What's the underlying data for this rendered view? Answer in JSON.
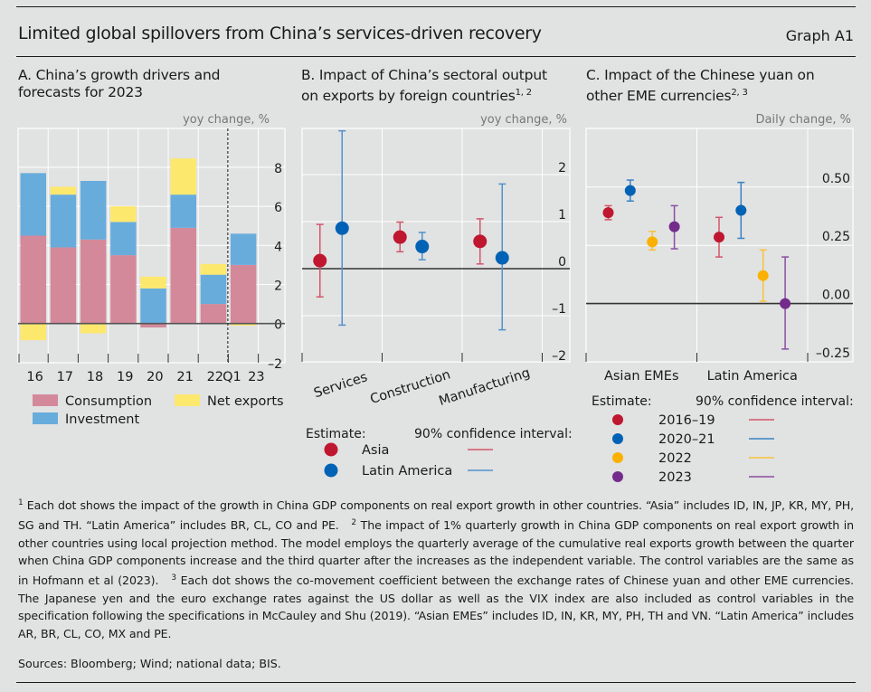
{
  "header": {
    "title": "Limited global spillovers from China’s services-driven recovery",
    "graph_number": "Graph A1"
  },
  "panels": {
    "a": {
      "title_line1": "A. China’s growth drivers and",
      "title_line2": "forecasts for 2023"
    },
    "b": {
      "title_line1": "B. Impact of China’s sectoral output",
      "title_line2": "on exports by foreign countries",
      "sup": "1, 2"
    },
    "c": {
      "title_line1": "C. Impact of the Chinese yuan on",
      "title_line2": "other EME currencies",
      "sup": "2, 3"
    }
  },
  "chart_data": [
    {
      "id": "panel-a",
      "type": "bar",
      "stacked": true,
      "title": "A. China’s growth drivers and forecasts for 2023",
      "ylabel": "yoy change, %",
      "ylim": [
        -2,
        9.5
      ],
      "yticks": [
        8,
        6,
        4,
        2,
        0,
        -2
      ],
      "ytick_labels": [
        "8",
        "6",
        "4",
        "2",
        "0",
        "–2"
      ],
      "categories": [
        "16",
        "17",
        "18",
        "19",
        "20",
        "21",
        "22",
        "Q1 23"
      ],
      "vertical_separator_after": "22",
      "series": [
        {
          "name": "Consumption",
          "color": "#d3899a",
          "values": [
            4.5,
            3.9,
            4.3,
            3.5,
            -0.2,
            4.9,
            1.0,
            3.0
          ]
        },
        {
          "name": "Investment",
          "color": "#68acdc",
          "values": [
            3.2,
            2.7,
            3.0,
            1.7,
            1.8,
            1.7,
            1.5,
            1.6
          ]
        },
        {
          "name": "Net exports",
          "color": "#fde86e",
          "values": [
            -0.85,
            0.4,
            -0.5,
            0.8,
            0.6,
            1.85,
            0.55,
            -0.1
          ]
        }
      ],
      "legend": [
        {
          "label": "Consumption",
          "color": "#d3899a"
        },
        {
          "label": "Net exports",
          "color": "#fde86e"
        },
        {
          "label": "Investment",
          "color": "#68acdc"
        }
      ],
      "legend_position": "bottom"
    },
    {
      "id": "panel-b",
      "type": "scatter",
      "title": "B. Impact of China’s sectoral output on exports by foreign countries",
      "ylabel": "yoy change, %",
      "ylim": [
        -2,
        3
      ],
      "yticks": [
        2,
        1,
        0,
        -1,
        -2
      ],
      "ytick_labels": [
        "2",
        "1",
        "0",
        "–1",
        "–2"
      ],
      "categories": [
        "Services",
        "Construction",
        "Manufacturing"
      ],
      "series": [
        {
          "name": "Asia",
          "color": "#bf1730",
          "ci_color": "#d2576b",
          "estimate": [
            0.17,
            0.67,
            0.58
          ],
          "ci_low": [
            -0.6,
            0.36,
            0.1
          ],
          "ci_high": [
            0.94,
            0.99,
            1.06
          ]
        },
        {
          "name": "Latin America",
          "color": "#0062b5",
          "ci_color": "#5192cc",
          "estimate": [
            0.86,
            0.47,
            0.23
          ],
          "ci_low": [
            -1.2,
            0.19,
            -1.3
          ],
          "ci_high": [
            2.93,
            0.77,
            1.8
          ]
        }
      ],
      "legend": {
        "estimate_label": "Estimate:",
        "ci_label": "90% confidence interval:",
        "items": [
          {
            "label": "Asia"
          },
          {
            "label": "Latin America"
          }
        ]
      },
      "legend_position": "bottom"
    },
    {
      "id": "panel-c",
      "type": "scatter",
      "title": "C. Impact of the Chinese yuan on other EME currencies",
      "ylabel": "Daily change, %",
      "ylim": [
        -0.25,
        0.75
      ],
      "yticks": [
        0.5,
        0.25,
        0.0,
        -0.25
      ],
      "ytick_labels": [
        "0.50",
        "0.25",
        "0.00",
        "–0.25"
      ],
      "categories": [
        "Asian EMEs",
        "Latin America"
      ],
      "series": [
        {
          "name": "2016–19",
          "color": "#bf1730",
          "ci_color": "#d2576b",
          "estimate": [
            0.39,
            0.285
          ],
          "ci_low": [
            0.36,
            0.2
          ],
          "ci_high": [
            0.42,
            0.37
          ]
        },
        {
          "name": "2020–21",
          "color": "#0062b5",
          "ci_color": "#3a82c4",
          "estimate": [
            0.485,
            0.4
          ],
          "ci_low": [
            0.44,
            0.28
          ],
          "ci_high": [
            0.53,
            0.52
          ]
        },
        {
          "name": "2022",
          "color": "#fbb100",
          "ci_color": "#f8c23c",
          "estimate": [
            0.265,
            0.12
          ],
          "ci_low": [
            0.23,
            0.01
          ],
          "ci_high": [
            0.31,
            0.23
          ]
        },
        {
          "name": "2023",
          "color": "#742c8c",
          "ci_color": "#8a4ea0",
          "estimate": [
            0.33,
            0.0
          ],
          "ci_low": [
            0.235,
            -0.195
          ],
          "ci_high": [
            0.42,
            0.2
          ]
        }
      ],
      "legend": {
        "estimate_label": "Estimate:",
        "ci_label": "90% confidence interval:",
        "items": [
          {
            "label": "2016–19"
          },
          {
            "label": "2020–21"
          },
          {
            "label": "2022"
          },
          {
            "label": "2023"
          }
        ]
      },
      "legend_position": "bottom"
    }
  ],
  "footnotes": {
    "n1_mark": "1",
    "n1": "Each dot shows the impact of the growth in China GDP components on real export growth in other countries. “Asia” includes ID, IN, JP, KR, MY, PH, SG and TH. “Latin America” includes BR, CL, CO and PE.",
    "n2_mark": "2",
    "n2": "The impact of 1% quarterly growth in China GDP components on real export growth in other countries using local projection method. The model employs the quarterly average of the cumulative real exports growth between the quarter when China GDP components increase and the third quarter after the increases as the independent variable. The control variables are the same as in Hofmann et al (2023).",
    "n3_mark": "3",
    "n3": "Each dot shows the co-movement coefficient between the exchange rates of Chinese yuan and other EME currencies. The Japanese yen and the euro exchange rates against the US dollar as well as the VIX index are also included as control variables in the specification following the specifications in McCauley and Shu (2019). “Asian EMEs” includes ID, IN, KR, MY, PH, TH and VN. “Latin America” includes AR, BR, CL, CO, MX and PE.",
    "sources": "Sources: Bloomberg; Wind; national data; BIS."
  }
}
